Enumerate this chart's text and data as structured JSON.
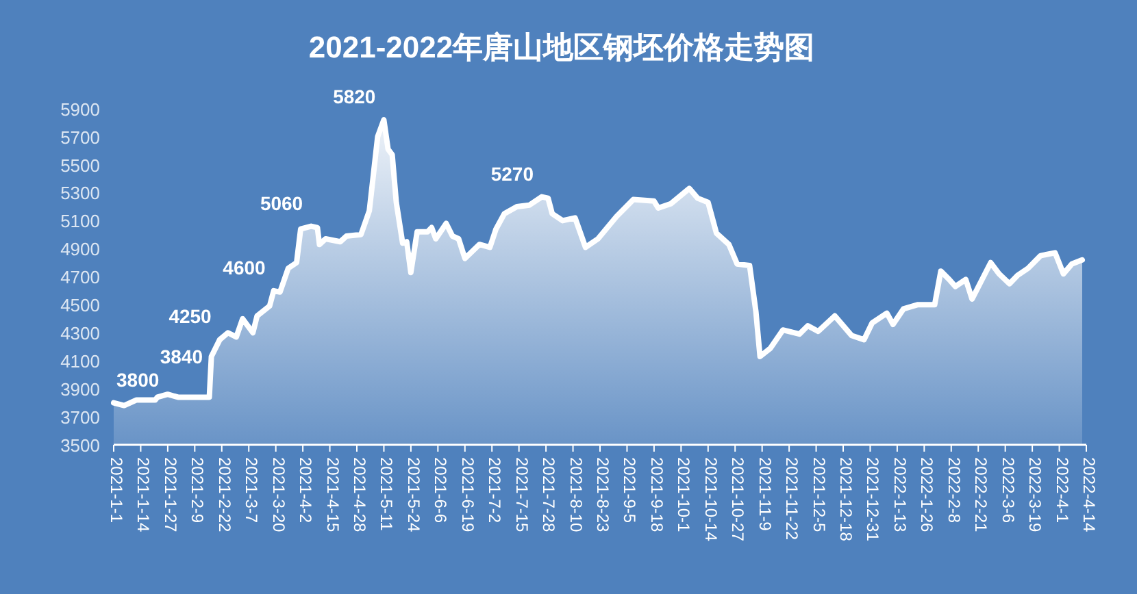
{
  "chart_data": {
    "type": "area",
    "title": "2021-2022年唐山地区钢坯价格走势图",
    "x": [
      "2021-01-01",
      "2021-01-06",
      "2021-01-12",
      "2021-01-21",
      "2021-01-22",
      "2021-01-27",
      "2021-02-01",
      "2021-02-16",
      "2021-02-17",
      "2021-02-21",
      "2021-02-25",
      "2021-03-01",
      "2021-03-04",
      "2021-03-09",
      "2021-03-11",
      "2021-03-17",
      "2021-03-19",
      "2021-03-22",
      "2021-03-26",
      "2021-03-30",
      "2021-04-01",
      "2021-04-06",
      "2021-04-09",
      "2021-04-10",
      "2021-04-13",
      "2021-04-20",
      "2021-04-23",
      "2021-04-30",
      "2021-05-04",
      "2021-05-08",
      "2021-05-11",
      "2021-05-13",
      "2021-05-15",
      "2021-05-17",
      "2021-05-20",
      "2021-05-22",
      "2021-05-24",
      "2021-05-27",
      "2021-06-01",
      "2021-06-03",
      "2021-06-05",
      "2021-06-10",
      "2021-06-13",
      "2021-06-16",
      "2021-06-19",
      "2021-06-26",
      "2021-07-01",
      "2021-07-04",
      "2021-07-08",
      "2021-07-14",
      "2021-07-20",
      "2021-07-26",
      "2021-07-29",
      "2021-07-31",
      "2021-08-05",
      "2021-08-11",
      "2021-08-16",
      "2021-08-22",
      "2021-08-31",
      "2021-09-08",
      "2021-09-18",
      "2021-09-20",
      "2021-09-26",
      "2021-10-05",
      "2021-10-09",
      "2021-10-14",
      "2021-10-18",
      "2021-10-24",
      "2021-10-28",
      "2021-11-03",
      "2021-11-06",
      "2021-11-08",
      "2021-11-13",
      "2021-11-19",
      "2021-11-27",
      "2021-12-01",
      "2021-12-06",
      "2021-12-14",
      "2021-12-22",
      "2021-12-28",
      "2022-01-01",
      "2022-01-08",
      "2022-01-11",
      "2022-01-16",
      "2022-01-23",
      "2022-01-31",
      "2022-02-03",
      "2022-02-07",
      "2022-02-10",
      "2022-02-15",
      "2022-02-18",
      "2022-02-27",
      "2022-03-03",
      "2022-03-08",
      "2022-03-12",
      "2022-03-17",
      "2022-03-23",
      "2022-03-30",
      "2022-04-03",
      "2022-04-07",
      "2022-04-12"
    ],
    "series": [
      {
        "color": "#ffffff",
        "values": [
          3800,
          3780,
          3820,
          3820,
          3840,
          3860,
          3840,
          3840,
          4130,
          4250,
          4300,
          4270,
          4400,
          4300,
          4420,
          4490,
          4600,
          4590,
          4760,
          4800,
          5040,
          5060,
          5050,
          4930,
          4970,
          4950,
          4990,
          5000,
          5170,
          5700,
          5820,
          5610,
          5570,
          5230,
          4940,
          4950,
          4730,
          5020,
          5020,
          5050,
          4970,
          5080,
          4990,
          4970,
          4830,
          4930,
          4910,
          5040,
          5150,
          5200,
          5210,
          5270,
          5260,
          5150,
          5100,
          5120,
          4910,
          4970,
          5130,
          5250,
          5240,
          5190,
          5220,
          5330,
          5260,
          5230,
          5010,
          4930,
          4790,
          4780,
          4450,
          4130,
          4190,
          4320,
          4290,
          4350,
          4310,
          4420,
          4280,
          4250,
          4370,
          4440,
          4360,
          4470,
          4500,
          4500,
          4740,
          4680,
          4630,
          4680,
          4540,
          4800,
          4720,
          4650,
          4710,
          4760,
          4850,
          4870,
          4720,
          4790,
          4820
        ]
      }
    ],
    "annotations": [
      {
        "text": "3800",
        "x": "2021-01-01",
        "y": 3800
      },
      {
        "text": "3840",
        "x": "2021-01-22",
        "y": 3840
      },
      {
        "text": "4250",
        "x": "2021-02-21",
        "y": 4250
      },
      {
        "text": "4600",
        "x": "2021-03-19",
        "y": 4600
      },
      {
        "text": "5060",
        "x": "2021-04-06",
        "y": 5060
      },
      {
        "text": "5820",
        "x": "2021-05-11",
        "y": 5820
      },
      {
        "text": "5270",
        "x": "2021-07-26",
        "y": 5270
      }
    ],
    "xlim": [
      "2021-01-01",
      "2022-04-14"
    ],
    "xticks": [
      {
        "value": "2021-01-01",
        "label": "2021-1-1"
      },
      {
        "value": "2021-01-14",
        "label": "2021-1-14"
      },
      {
        "value": "2021-01-27",
        "label": "2021-1-27"
      },
      {
        "value": "2021-02-09",
        "label": "2021-2-9"
      },
      {
        "value": "2021-02-22",
        "label": "2021-2-22"
      },
      {
        "value": "2021-03-07",
        "label": "2021-3-7"
      },
      {
        "value": "2021-03-20",
        "label": "2021-3-20"
      },
      {
        "value": "2021-04-02",
        "label": "2021-4-2"
      },
      {
        "value": "2021-04-15",
        "label": "2021-4-15"
      },
      {
        "value": "2021-04-28",
        "label": "2021-4-28"
      },
      {
        "value": "2021-05-11",
        "label": "2021-5-11"
      },
      {
        "value": "2021-05-24",
        "label": "2021-5-24"
      },
      {
        "value": "2021-06-06",
        "label": "2021-6-6"
      },
      {
        "value": "2021-06-19",
        "label": "2021-6-19"
      },
      {
        "value": "2021-07-02",
        "label": "2021-7-2"
      },
      {
        "value": "2021-07-15",
        "label": "2021-7-15"
      },
      {
        "value": "2021-07-28",
        "label": "2021-7-28"
      },
      {
        "value": "2021-08-10",
        "label": "2021-8-10"
      },
      {
        "value": "2021-08-23",
        "label": "2021-8-23"
      },
      {
        "value": "2021-09-05",
        "label": "2021-9-5"
      },
      {
        "value": "2021-09-18",
        "label": "2021-9-18"
      },
      {
        "value": "2021-10-01",
        "label": "2021-10-1"
      },
      {
        "value": "2021-10-14",
        "label": "2021-10-14"
      },
      {
        "value": "2021-10-27",
        "label": "2021-10-27"
      },
      {
        "value": "2021-11-09",
        "label": "2021-11-9"
      },
      {
        "value": "2021-11-22",
        "label": "2021-11-22"
      },
      {
        "value": "2021-12-05",
        "label": "2021-12-5"
      },
      {
        "value": "2021-12-18",
        "label": "2021-12-18"
      },
      {
        "value": "2021-12-31",
        "label": "2021-12-31"
      },
      {
        "value": "2022-01-13",
        "label": "2022-1-13"
      },
      {
        "value": "2022-01-26",
        "label": "2022-1-26"
      },
      {
        "value": "2022-02-08",
        "label": "2022-2-8"
      },
      {
        "value": "2022-02-21",
        "label": "2022-2-21"
      },
      {
        "value": "2022-03-06",
        "label": "2022-3-6"
      },
      {
        "value": "2022-03-19",
        "label": "2022-3-19"
      },
      {
        "value": "2022-04-01",
        "label": "2022-4-1"
      },
      {
        "value": "2022-04-14",
        "label": "2022-4-14"
      }
    ],
    "ylim": [
      3500,
      5900
    ],
    "yticks": [
      3500,
      3700,
      3900,
      4100,
      4300,
      4500,
      4700,
      4900,
      5100,
      5300,
      5500,
      5700,
      5900
    ]
  }
}
